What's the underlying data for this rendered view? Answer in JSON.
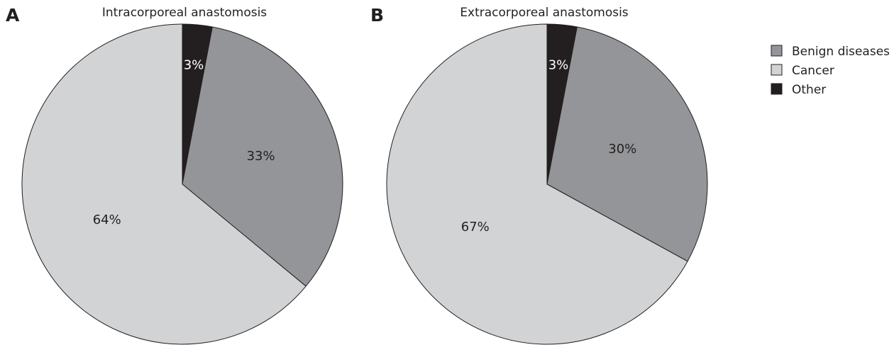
{
  "chart_data": [
    {
      "type": "pie",
      "panel": "A",
      "title": "Intracorporeal anastomosis",
      "categories": [
        "Benign diseases",
        "Cancer",
        "Other"
      ],
      "values": [
        33,
        64,
        3
      ],
      "labels": [
        "33%",
        "64%",
        "3%"
      ]
    },
    {
      "type": "pie",
      "panel": "B",
      "title": "Extracorporeal anastomosis",
      "categories": [
        "Benign diseases",
        "Cancer",
        "Other"
      ],
      "values": [
        30,
        67,
        3
      ],
      "labels": [
        "30%",
        "67%",
        "3%"
      ]
    }
  ],
  "legend": {
    "placement": "right",
    "items": [
      {
        "label": "Benign diseases",
        "color": "#939598"
      },
      {
        "label": "Cancer",
        "color": "#d1d3d4"
      },
      {
        "label": "Other",
        "color": "#231f20"
      }
    ]
  },
  "colors": {
    "Benign diseases": "#939598",
    "Cancer": "#d1d3d4",
    "Other": "#231f20",
    "outline": "#231f20"
  }
}
